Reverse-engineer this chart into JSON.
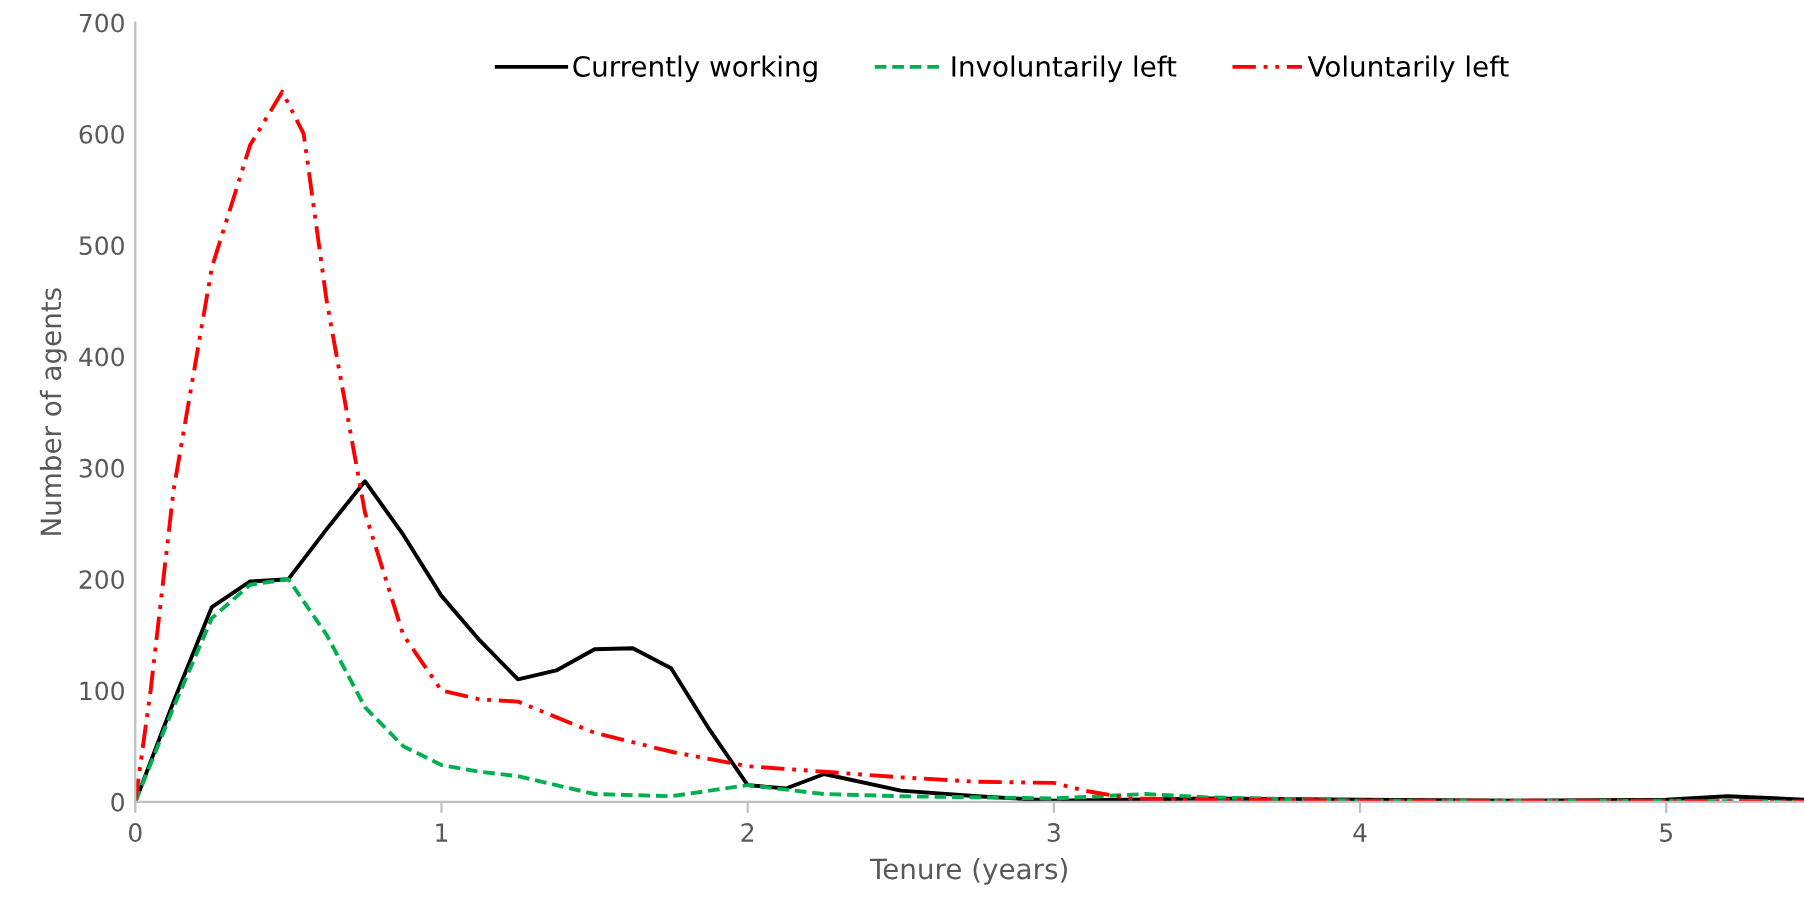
{
  "chart_data": {
    "type": "line",
    "xlabel": "Tenure (years)",
    "ylabel": "Number of agents",
    "xlim": [
      0,
      5.45
    ],
    "xticks": [
      0,
      1,
      2,
      3,
      4,
      5
    ],
    "ylim": [
      0,
      700
    ],
    "yticks": [
      0,
      100,
      200,
      300,
      400,
      500,
      600,
      700
    ],
    "grid": false,
    "legend": "top",
    "marker": "none",
    "series": [
      {
        "name": "Currently working",
        "color": "#000000",
        "line_style": "solid",
        "x": [
          0,
          0.125,
          0.25,
          0.375,
          0.5,
          0.625,
          0.75,
          0.875,
          1.0,
          1.125,
          1.25,
          1.375,
          1.5,
          1.625,
          1.75,
          1.875,
          2.0,
          2.125,
          2.25,
          2.5,
          2.75,
          3.0,
          3.25,
          3.5,
          4.0,
          4.5,
          5.0,
          5.2,
          5.45
        ],
        "values": [
          0,
          90,
          175,
          198,
          200,
          245,
          288,
          240,
          185,
          145,
          110,
          118,
          137,
          138,
          120,
          65,
          15,
          12,
          25,
          10,
          5,
          1,
          2,
          3,
          2,
          1,
          2,
          5,
          2
        ]
      },
      {
        "name": "Involuntarily left",
        "color": "#00b050",
        "line_style": "dashed",
        "x": [
          0,
          0.125,
          0.25,
          0.375,
          0.5,
          0.625,
          0.75,
          0.875,
          1.0,
          1.125,
          1.25,
          1.375,
          1.5,
          1.75,
          2.0,
          2.25,
          2.5,
          3.0,
          3.3,
          3.5,
          4.0,
          5.0,
          5.45
        ],
        "values": [
          0,
          85,
          165,
          195,
          200,
          150,
          85,
          50,
          33,
          27,
          23,
          15,
          7,
          5,
          15,
          7,
          5,
          3,
          7,
          4,
          1,
          1,
          0
        ]
      },
      {
        "name": "Voluntarily left",
        "color": "#ff0000",
        "line_style": "dashdot",
        "x": [
          0,
          0.05,
          0.125,
          0.25,
          0.375,
          0.48,
          0.55,
          0.625,
          0.75,
          0.875,
          1.0,
          1.125,
          1.25,
          1.5,
          1.75,
          2.0,
          2.25,
          2.5,
          2.75,
          3.0,
          3.1,
          3.25,
          3.5,
          4.0,
          5.0,
          5.45
        ],
        "values": [
          0,
          100,
          280,
          480,
          590,
          638,
          600,
          450,
          260,
          150,
          100,
          92,
          90,
          62,
          45,
          32,
          27,
          22,
          18,
          17,
          10,
          3,
          2,
          1,
          1,
          0
        ]
      }
    ]
  }
}
